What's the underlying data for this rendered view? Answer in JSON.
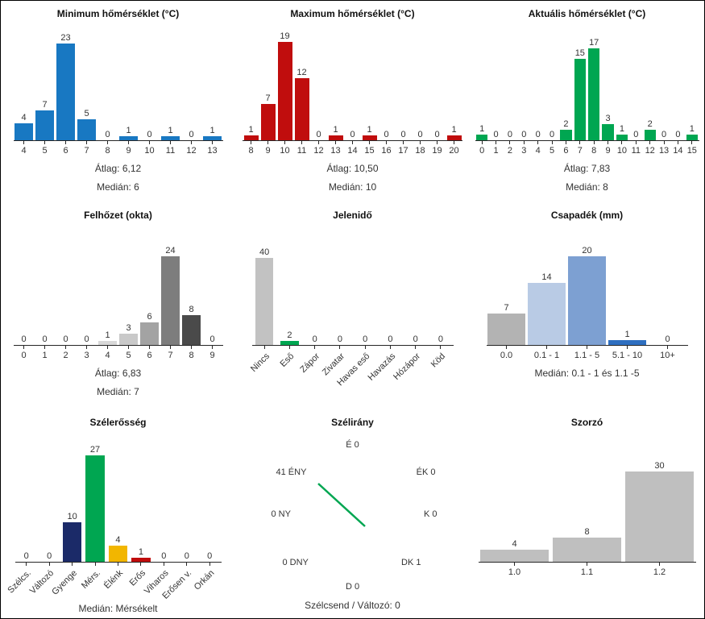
{
  "page": {
    "background": "#ffffff",
    "border_color": "#000000"
  },
  "chart_data": [
    {
      "type": "bar",
      "title": "Minimum hőmérséklet (°C)",
      "categories": [
        "4",
        "5",
        "6",
        "7",
        "8",
        "9",
        "10",
        "11",
        "12",
        "13"
      ],
      "values": [
        4,
        7,
        23,
        5,
        0,
        1,
        0,
        1,
        0,
        1
      ],
      "bar_color": "#1878c2",
      "ylim": [
        0,
        23
      ],
      "stats": [
        "Átlag: 6,12",
        "Medián: 6"
      ]
    },
    {
      "type": "bar",
      "title": "Maximum hőmérséklet (°C)",
      "categories": [
        "8",
        "9",
        "10",
        "11",
        "12",
        "13",
        "14",
        "15",
        "16",
        "17",
        "18",
        "19",
        "20"
      ],
      "values": [
        1,
        7,
        19,
        12,
        0,
        1,
        0,
        1,
        0,
        0,
        0,
        0,
        1
      ],
      "bar_color": "#c00d0d",
      "ylim": [
        0,
        19
      ],
      "stats": [
        "Átlag: 10,50",
        "Medián: 10"
      ]
    },
    {
      "type": "bar",
      "title": "Aktuális hőmérséklet (°C)",
      "categories": [
        "0",
        "1",
        "2",
        "3",
        "4",
        "5",
        "6",
        "7",
        "8",
        "9",
        "10",
        "11",
        "12",
        "13",
        "14",
        "15"
      ],
      "values": [
        1,
        0,
        0,
        0,
        0,
        0,
        2,
        15,
        17,
        3,
        1,
        0,
        2,
        0,
        0,
        1
      ],
      "bar_color": "#00a651",
      "ylim": [
        0,
        17
      ],
      "stats": [
        "Átlag: 7,83",
        "Medián: 8"
      ]
    },
    {
      "type": "bar",
      "title": "Felhőzet (okta)",
      "categories": [
        "0",
        "1",
        "2",
        "3",
        "4",
        "5",
        "6",
        "7",
        "8",
        "9"
      ],
      "values": [
        0,
        0,
        0,
        0,
        1,
        3,
        6,
        24,
        8,
        0
      ],
      "colors": [
        "#f0f0f0",
        "#eaeaea",
        "#e2e2e2",
        "#dcdcdc",
        "#d8d8d8",
        "#c9c9c9",
        "#a3a3a3",
        "#7d7d7d",
        "#4a4a4a",
        "#303030"
      ],
      "ylim": [
        0,
        24
      ],
      "stats": [
        "Átlag: 6,83",
        "Medián: 7"
      ]
    },
    {
      "type": "bar",
      "title": "Jelenidő",
      "categories": [
        "Nincs",
        "Eső",
        "Zápor",
        "Zivatar",
        "Havas eső",
        "Havazás",
        "Hózápor",
        "Köd"
      ],
      "values": [
        40,
        2,
        0,
        0,
        0,
        0,
        0,
        0
      ],
      "colors": [
        "#c2c2c2",
        "#00a651",
        "#c2c2c2",
        "#c2c2c2",
        "#c2c2c2",
        "#c2c2c2",
        "#c2c2c2",
        "#c2c2c2"
      ],
      "ylim": [
        0,
        40
      ],
      "stats": []
    },
    {
      "type": "bar",
      "title": "Csapadék (mm)",
      "categories": [
        "0.0",
        "0.1 - 1",
        "1.1 - 5",
        "5.1 - 10",
        "10+"
      ],
      "values": [
        7,
        14,
        20,
        1,
        0
      ],
      "colors": [
        "#b3b3b3",
        "#b9cbe5",
        "#7da0d2",
        "#2e6fc0",
        "#9bbbe0"
      ],
      "ylim": [
        0,
        20
      ],
      "stats": [
        "Medián: 0.1 - 1 és 1.1 -5"
      ]
    },
    {
      "type": "bar",
      "title": "Szélerősség",
      "categories": [
        "Szélcs.",
        "Változó",
        "Gyenge",
        "Mérs.",
        "Élénk",
        "Erős",
        "Viharos",
        "Erősen v.",
        "Orkán"
      ],
      "values": [
        0,
        0,
        10,
        27,
        4,
        1,
        0,
        0,
        0
      ],
      "colors": [
        "#c2c2c2",
        "#c2c2c2",
        "#1b2a68",
        "#00a651",
        "#f2b600",
        "#c00c0c",
        "#c2c2c2",
        "#c2c2c2",
        "#c2c2c2"
      ],
      "ylim": [
        0,
        27
      ],
      "stats": [
        "Medián: Mérsékelt"
      ]
    },
    {
      "type": "compass",
      "title": "Szélirány",
      "line_color": "#00a651",
      "line_from": "ÉNY",
      "directions": [
        {
          "name": "É",
          "value": 0,
          "display": "É 0",
          "pos": "n"
        },
        {
          "name": "ÉK",
          "value": 0,
          "display": "ÉK 0",
          "pos": "ne"
        },
        {
          "name": "K",
          "value": 0,
          "display": "K 0",
          "pos": "e"
        },
        {
          "name": "DK",
          "value": 1,
          "display": "DK 1",
          "pos": "se"
        },
        {
          "name": "D",
          "value": 0,
          "display": "D 0",
          "pos": "s"
        },
        {
          "name": "DNY",
          "value": 0,
          "display": "0 DNY",
          "pos": "sw"
        },
        {
          "name": "NY",
          "value": 0,
          "display": "0 NY",
          "pos": "w"
        },
        {
          "name": "ÉNY",
          "value": 41,
          "display": "41 ÉNY",
          "pos": "nw"
        }
      ],
      "footer": "Szélcsend / Változó: 0"
    },
    {
      "type": "bar",
      "title": "Szorzó",
      "categories": [
        "1.0",
        "1.1",
        "1.2"
      ],
      "values": [
        4,
        8,
        30
      ],
      "bar_color": "#bfbfbf",
      "ylim": [
        0,
        30
      ],
      "stats": []
    }
  ]
}
